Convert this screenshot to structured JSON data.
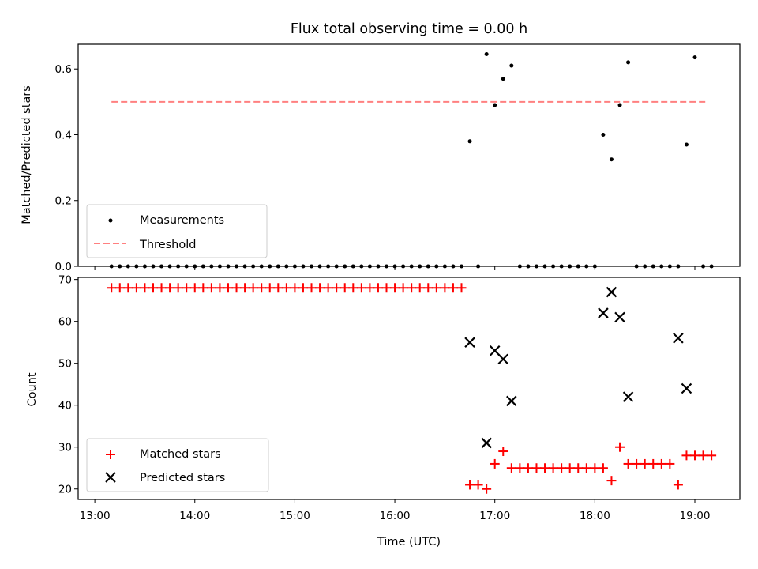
{
  "chart_data": [
    {
      "type": "scatter",
      "title": "Flux total observing time = 0.00 h",
      "xlabel": "",
      "ylabel": "Matched/Predicted stars",
      "ylim": [
        0,
        0.675
      ],
      "yticks": [
        0.0,
        0.2,
        0.4,
        0.6
      ],
      "ytick_labels": [
        "0.0",
        "0.2",
        "0.4",
        "0.6"
      ],
      "legend": {
        "location": "lower-left",
        "entries": [
          "Measurements",
          "Threshold"
        ]
      },
      "threshold": {
        "name": "Threshold",
        "y": 0.5,
        "x_start": "13:10",
        "x_end": "19:08",
        "color": "#ff8080",
        "style": "dashed"
      },
      "series": [
        {
          "name": "Measurements",
          "color": "#000000",
          "x": [
            "13:10",
            "13:15",
            "13:20",
            "13:25",
            "13:30",
            "13:35",
            "13:40",
            "13:45",
            "13:50",
            "13:55",
            "14:00",
            "14:05",
            "14:10",
            "14:15",
            "14:20",
            "14:25",
            "14:30",
            "14:35",
            "14:40",
            "14:45",
            "14:50",
            "14:55",
            "15:00",
            "15:05",
            "15:10",
            "15:15",
            "15:20",
            "15:25",
            "15:30",
            "15:35",
            "15:40",
            "15:45",
            "15:50",
            "15:55",
            "16:00",
            "16:05",
            "16:10",
            "16:15",
            "16:20",
            "16:25",
            "16:30",
            "16:35",
            "16:40",
            "16:45",
            "16:50",
            "16:55",
            "17:00",
            "17:05",
            "17:10",
            "17:15",
            "17:20",
            "17:25",
            "17:30",
            "17:35",
            "17:40",
            "17:45",
            "17:50",
            "17:55",
            "18:00",
            "18:05",
            "18:10",
            "18:15",
            "18:20",
            "18:25",
            "18:30",
            "18:35",
            "18:40",
            "18:45",
            "18:50",
            "18:55",
            "19:00",
            "19:05",
            "19:10"
          ],
          "y": [
            0,
            0,
            0,
            0,
            0,
            0,
            0,
            0,
            0,
            0,
            0,
            0,
            0,
            0,
            0,
            0,
            0,
            0,
            0,
            0,
            0,
            0,
            0,
            0,
            0,
            0,
            0,
            0,
            0,
            0,
            0,
            0,
            0,
            0,
            0,
            0,
            0,
            0,
            0,
            0,
            0,
            0,
            0,
            0.38,
            0,
            0.645,
            0.49,
            0.57,
            0.61,
            0,
            0,
            0,
            0,
            0,
            0,
            0,
            0,
            0,
            0,
            0.4,
            0.325,
            0.49,
            0.62,
            0,
            0,
            0,
            0,
            0,
            0,
            0.37,
            0.635,
            0,
            0
          ]
        }
      ]
    },
    {
      "type": "scatter",
      "xlabel": "Time (UTC)",
      "ylabel": "Count",
      "ylim": [
        17.5,
        70.5
      ],
      "yticks": [
        20,
        30,
        40,
        50,
        60,
        70
      ],
      "ytick_labels": [
        "20",
        "30",
        "40",
        "50",
        "60",
        "70"
      ],
      "xticks": [
        "13:00",
        "14:00",
        "15:00",
        "16:00",
        "17:00",
        "18:00",
        "19:00"
      ],
      "xlim": [
        "12:50",
        "19:27"
      ],
      "legend": {
        "location": "lower-left",
        "entries": [
          "Matched stars",
          "Predicted stars"
        ]
      },
      "series": [
        {
          "name": "Matched stars",
          "color": "#ff0000",
          "marker": "plus",
          "x": [
            "13:10",
            "13:15",
            "13:20",
            "13:25",
            "13:30",
            "13:35",
            "13:40",
            "13:45",
            "13:50",
            "13:55",
            "14:00",
            "14:05",
            "14:10",
            "14:15",
            "14:20",
            "14:25",
            "14:30",
            "14:35",
            "14:40",
            "14:45",
            "14:50",
            "14:55",
            "15:00",
            "15:05",
            "15:10",
            "15:15",
            "15:20",
            "15:25",
            "15:30",
            "15:35",
            "15:40",
            "15:45",
            "15:50",
            "15:55",
            "16:00",
            "16:05",
            "16:10",
            "16:15",
            "16:20",
            "16:25",
            "16:30",
            "16:35",
            "16:40",
            "16:45",
            "16:50",
            "16:55",
            "17:00",
            "17:05",
            "17:10",
            "17:15",
            "17:20",
            "17:25",
            "17:30",
            "17:35",
            "17:40",
            "17:45",
            "17:50",
            "17:55",
            "18:00",
            "18:05",
            "18:10",
            "18:15",
            "18:20",
            "18:25",
            "18:30",
            "18:35",
            "18:40",
            "18:45",
            "18:50",
            "18:55",
            "19:00",
            "19:05",
            "19:10"
          ],
          "y": [
            68,
            68,
            68,
            68,
            68,
            68,
            68,
            68,
            68,
            68,
            68,
            68,
            68,
            68,
            68,
            68,
            68,
            68,
            68,
            68,
            68,
            68,
            68,
            68,
            68,
            68,
            68,
            68,
            68,
            68,
            68,
            68,
            68,
            68,
            68,
            68,
            68,
            68,
            68,
            68,
            68,
            68,
            68,
            21,
            21,
            20,
            26,
            29,
            25,
            25,
            25,
            25,
            25,
            25,
            25,
            25,
            25,
            25,
            25,
            25,
            22,
            30,
            26,
            26,
            26,
            26,
            26,
            26,
            21,
            28,
            28,
            28,
            28
          ]
        },
        {
          "name": "Predicted stars",
          "color": "#000000",
          "marker": "x",
          "x": [
            "16:45",
            "16:55",
            "17:00",
            "17:05",
            "17:10",
            "18:05",
            "18:10",
            "18:15",
            "18:20",
            "18:50",
            "18:55"
          ],
          "y": [
            55,
            31,
            53,
            51,
            41,
            62,
            67,
            61,
            42,
            56,
            44
          ]
        }
      ]
    }
  ]
}
